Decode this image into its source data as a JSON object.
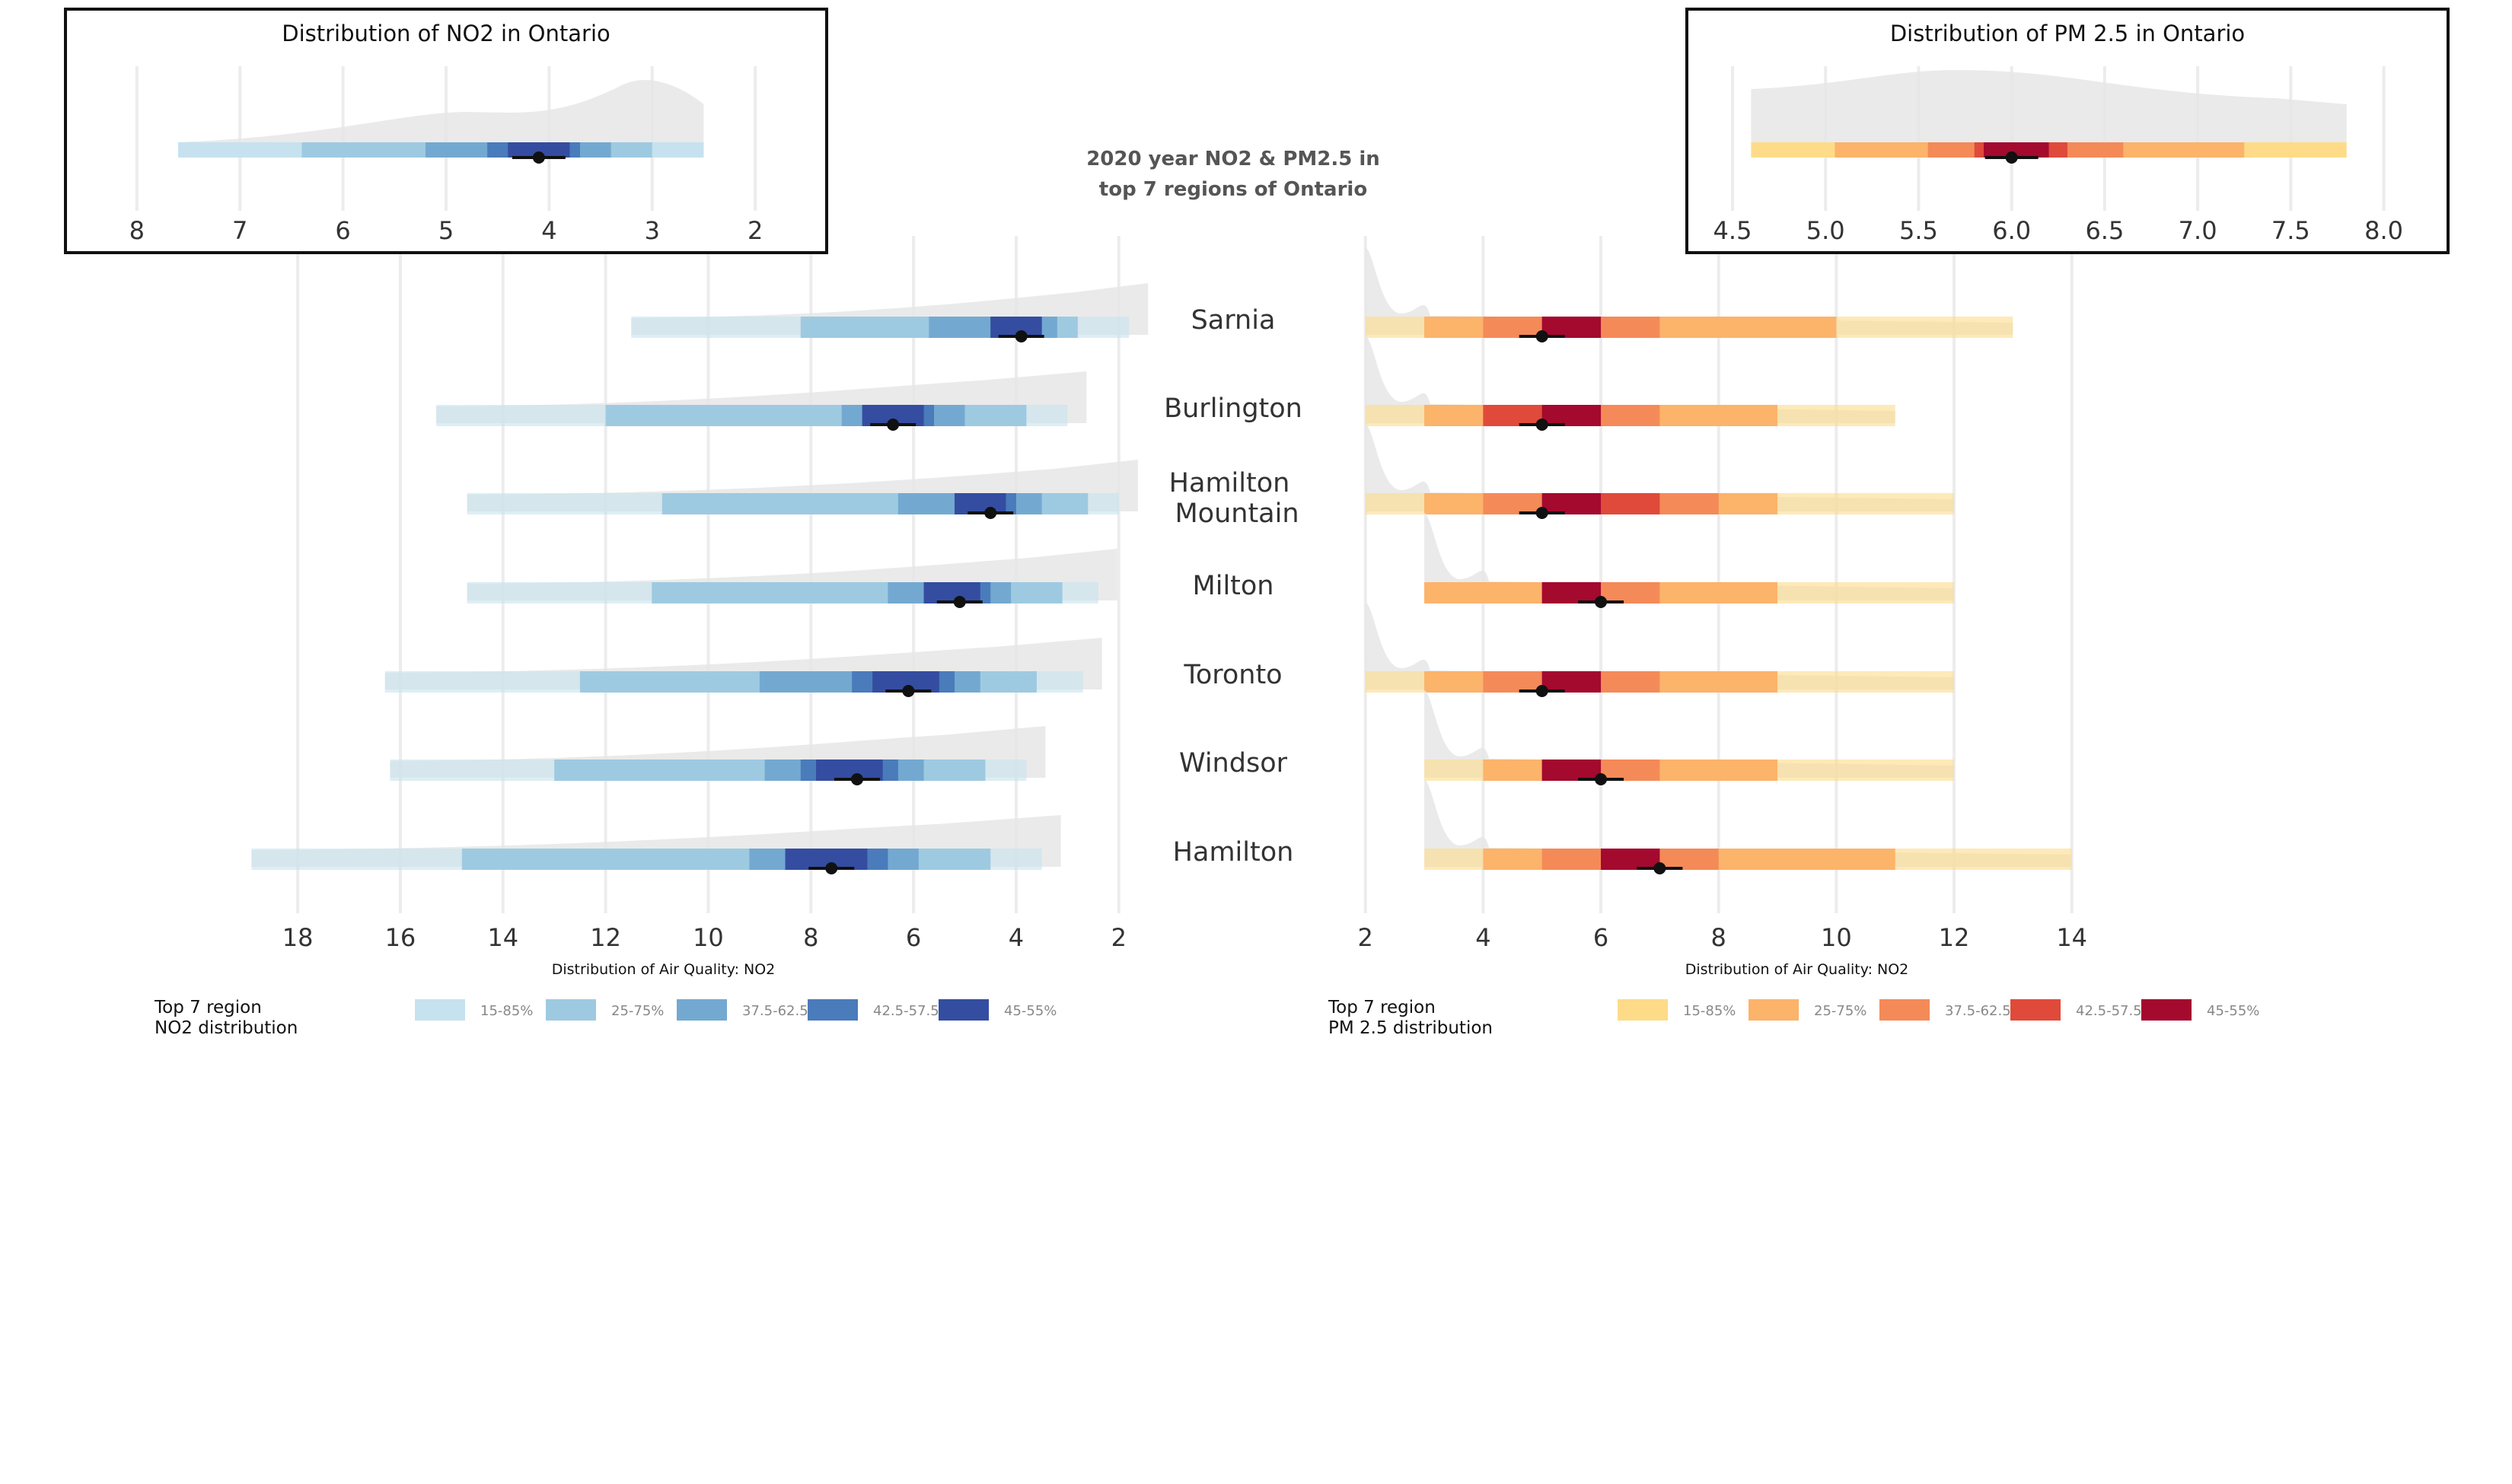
{
  "title_lines": [
    "2020 year NO2 & PM2.5 in",
    "top 7 regions of Ontario"
  ],
  "regions": [
    "Sarnia",
    "Burlington",
    "Hamilton|Mountain",
    "Milton",
    "Toronto",
    "Windsor",
    "Hamilton"
  ],
  "colors": {
    "no2": [
      "#c6e2ef",
      "#9ecae1",
      "#73a9d1",
      "#4a7bbb",
      "#344da0"
    ],
    "pm": [
      "#fddb88",
      "#fcb36a",
      "#f48a58",
      "#e04a3a",
      "#a4092e"
    ],
    "density": "#e6e6e6",
    "grid": "#ececec",
    "point": "#111111"
  },
  "chart_data": [
    {
      "type": "interval",
      "name": "no2_main",
      "xlabel": "Distribution of Air Quality: NO2",
      "x_reversed": true,
      "xlim": [
        19.9,
        1.7
      ],
      "xticks": [
        18,
        16,
        14,
        12,
        10,
        8,
        6,
        4,
        2
      ],
      "legend_title": [
        "Top 7 region",
        " NO2 distribution"
      ],
      "legend_labels": [
        "15-85%",
        "25-75%",
        "37.5-62.5%",
        "42.5-57.5%",
        "45-55%"
      ],
      "series": [
        {
          "region": "Sarnia",
          "median": 3.9,
          "intervals": [
            [
              11.5,
              1.8
            ],
            [
              8.2,
              2.8
            ],
            [
              5.7,
              3.2
            ],
            [
              4.5,
              3.5
            ],
            [
              4.5,
              3.5
            ]
          ]
        },
        {
          "region": "Burlington",
          "median": 6.4,
          "intervals": [
            [
              15.3,
              3.0
            ],
            [
              12.0,
              3.8
            ],
            [
              7.4,
              5.0
            ],
            [
              7.0,
              5.6
            ],
            [
              7.0,
              5.8
            ]
          ]
        },
        {
          "region": "Hamilton Mountain",
          "median": 4.5,
          "intervals": [
            [
              14.7,
              2.0
            ],
            [
              10.9,
              2.6
            ],
            [
              6.3,
              3.5
            ],
            [
              5.2,
              4.0
            ],
            [
              5.2,
              4.2
            ]
          ]
        },
        {
          "region": "Milton",
          "median": 5.1,
          "intervals": [
            [
              14.7,
              2.4
            ],
            [
              11.1,
              3.1
            ],
            [
              6.5,
              4.1
            ],
            [
              5.8,
              4.5
            ],
            [
              5.8,
              4.7
            ]
          ]
        },
        {
          "region": "Toronto",
          "median": 6.1,
          "intervals": [
            [
              16.3,
              2.7
            ],
            [
              12.5,
              3.6
            ],
            [
              9.0,
              4.7
            ],
            [
              7.2,
              5.2
            ],
            [
              6.8,
              5.5
            ]
          ]
        },
        {
          "region": "Windsor",
          "median": 7.1,
          "intervals": [
            [
              16.2,
              3.8
            ],
            [
              13.0,
              4.6
            ],
            [
              8.9,
              5.8
            ],
            [
              8.2,
              6.3
            ],
            [
              7.9,
              6.6
            ]
          ]
        },
        {
          "region": "Hamilton",
          "median": 7.6,
          "intervals": [
            [
              18.9,
              3.5
            ],
            [
              14.8,
              4.5
            ],
            [
              9.2,
              5.9
            ],
            [
              8.5,
              6.5
            ],
            [
              8.5,
              6.9
            ]
          ]
        }
      ]
    },
    {
      "type": "interval",
      "name": "pm_main",
      "xlabel": "Distribution of Air Quality: NO2",
      "x_reversed": false,
      "xlim": [
        1.9,
        16.5
      ],
      "xticks": [
        2,
        4,
        6,
        8,
        10,
        12,
        14
      ],
      "legend_title": [
        "Top 7 region",
        " PM 2.5 distribution"
      ],
      "legend_labels": [
        "15-85%",
        "25-75%",
        "37.5-62.5%",
        "42.5-57.5%",
        "45-55%"
      ],
      "series": [
        {
          "region": "Sarnia",
          "median": 5,
          "intervals": [
            [
              2,
              13
            ],
            [
              3,
              10
            ],
            [
              4,
              7
            ],
            [
              5,
              6
            ],
            [
              5,
              6
            ]
          ]
        },
        {
          "region": "Burlington",
          "median": 5,
          "intervals": [
            [
              2,
              11
            ],
            [
              3,
              9
            ],
            [
              4,
              7
            ],
            [
              4,
              6
            ],
            [
              5,
              6
            ]
          ]
        },
        {
          "region": "Hamilton Mountain",
          "median": 5,
          "intervals": [
            [
              2,
              12
            ],
            [
              3,
              9
            ],
            [
              4,
              8
            ],
            [
              5,
              7
            ],
            [
              5,
              6
            ]
          ]
        },
        {
          "region": "Milton",
          "median": 6,
          "intervals": [
            [
              3,
              12
            ],
            [
              3,
              9
            ],
            [
              5,
              7
            ],
            [
              5,
              6
            ],
            [
              5,
              6
            ]
          ]
        },
        {
          "region": "Toronto",
          "median": 5,
          "intervals": [
            [
              2,
              12
            ],
            [
              3,
              9
            ],
            [
              4,
              7
            ],
            [
              5,
              6
            ],
            [
              5,
              6
            ]
          ]
        },
        {
          "region": "Windsor",
          "median": 6,
          "intervals": [
            [
              3,
              12
            ],
            [
              4,
              9
            ],
            [
              5,
              7
            ],
            [
              5,
              6
            ],
            [
              5,
              6
            ]
          ]
        },
        {
          "region": "Hamilton",
          "median": 7,
          "intervals": [
            [
              3,
              14
            ],
            [
              4,
              11
            ],
            [
              5,
              8
            ],
            [
              6,
              7
            ],
            [
              6,
              7
            ]
          ]
        }
      ]
    },
    {
      "type": "interval",
      "name": "no2_inset",
      "title": "Distribution of NO2 in Ontario",
      "x_reversed": true,
      "xlim": [
        8.25,
        1.75
      ],
      "xticks": [
        8,
        7,
        6,
        5,
        4,
        3,
        2
      ],
      "median": 4.1,
      "intervals": [
        [
          7.6,
          2.5
        ],
        [
          6.4,
          3.0
        ],
        [
          5.2,
          3.4
        ],
        [
          4.6,
          3.7
        ],
        [
          4.4,
          3.8
        ]
      ]
    },
    {
      "type": "interval",
      "name": "pm_inset",
      "title": "Distribution of PM 2.5 in Ontario",
      "x_reversed": false,
      "xlim": [
        4.5,
        8.1
      ],
      "xticks": [
        "4.5",
        "5.0",
        "5.5",
        "6.0",
        "6.5",
        "7.0",
        "7.5",
        "8.0"
      ],
      "median": 6.0,
      "intervals": [
        [
          4.6,
          7.8
        ],
        [
          5.05,
          7.25
        ],
        [
          5.55,
          6.6
        ],
        [
          5.8,
          6.3
        ],
        [
          5.85,
          6.2
        ]
      ]
    }
  ]
}
